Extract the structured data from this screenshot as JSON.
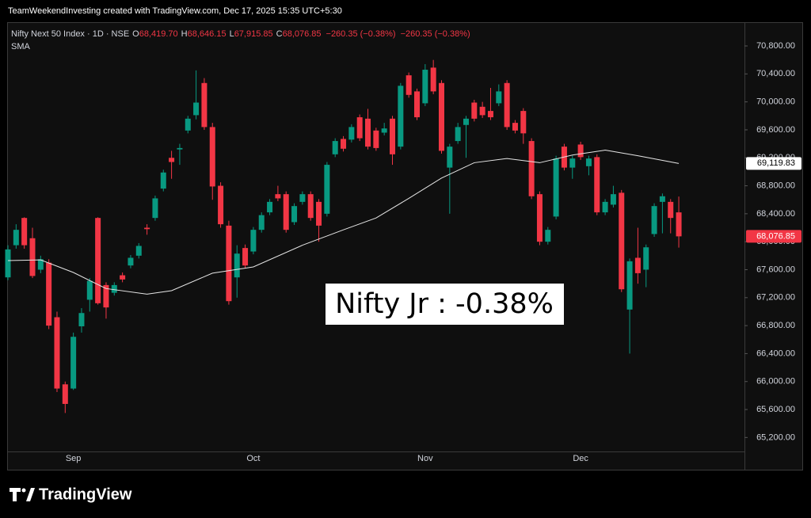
{
  "chart_data": {
    "type": "candlestick",
    "header": "TeamWeekendInvesting created with TradingView.com, Dec 17, 2025 15:35 UTC+5:30",
    "title": "Nifty Next 50 Index · 1D · NSE",
    "ohlc_legend": [
      {
        "key": "O",
        "text": "68,419.70"
      },
      {
        "key": "H",
        "text": "68,646.15"
      },
      {
        "key": "L",
        "text": "67,915.85"
      },
      {
        "key": "C",
        "text": "68,076.85"
      }
    ],
    "change_legend": [
      "−260.35 (−0.38%)",
      "−260.35 (−0.38%)"
    ],
    "annotation": "Nifty Jr : -0.38%",
    "brand": "TradingView",
    "up_color": "#089981",
    "down_color": "#f23645",
    "grid": false,
    "categories": [
      null,
      null,
      null,
      null,
      null,
      null,
      null,
      null,
      "Sep",
      null,
      null,
      null,
      null,
      null,
      null,
      null,
      null,
      null,
      null,
      null,
      null,
      null,
      null,
      null,
      null,
      null,
      null,
      null,
      null,
      null,
      "Oct",
      null,
      null,
      null,
      null,
      null,
      null,
      null,
      null,
      null,
      null,
      null,
      null,
      null,
      null,
      null,
      null,
      null,
      null,
      null,
      null,
      "Nov",
      null,
      null,
      null,
      null,
      null,
      null,
      null,
      null,
      null,
      null,
      null,
      null,
      null,
      null,
      null,
      null,
      null,
      null,
      "Dec",
      null,
      null,
      null,
      null,
      null,
      null,
      null,
      null,
      null,
      null,
      null,
      null
    ],
    "series": [
      {
        "open": [
          67490,
          67950,
          68340,
          68050,
          67600,
          67700,
          66920,
          65960,
          65900,
          66790,
          67170,
          68340,
          67380,
          67270,
          67520,
          67660,
          67800,
          68200,
          68340,
          68760,
          69200,
          69320,
          69590,
          69810,
          70270,
          69640,
          68800,
          68230,
          67490,
          67910,
          67860,
          68170,
          68420,
          68680,
          68680,
          68280,
          68570,
          68680,
          68570,
          68400,
          69250,
          69470,
          69460,
          69780,
          69760,
          69590,
          69560,
          69760,
          69360,
          70380,
          70150,
          69980,
          70490,
          70270,
          69060,
          69440,
          69670,
          69990,
          69930,
          69870,
          69980,
          70270,
          69700,
          69870,
          69440,
          68680,
          68000,
          68360,
          69360,
          69060,
          69390,
          69080,
          69210,
          68420,
          68530,
          68700,
          67030,
          67770,
          67600,
          68110,
          68570,
          68570,
          68419.7
        ],
        "high": [
          67950,
          68250,
          68350,
          68200,
          67800,
          67750,
          67000,
          66000,
          66700,
          67050,
          67480,
          68350,
          67420,
          67420,
          67560,
          67810,
          67980,
          68250,
          68660,
          69030,
          69300,
          69400,
          69800,
          70450,
          70340,
          69700,
          68850,
          68300,
          67950,
          67960,
          68210,
          68420,
          68610,
          68800,
          68720,
          68550,
          68720,
          68720,
          68610,
          69140,
          69480,
          69510,
          69680,
          69820,
          69900,
          69630,
          69700,
          69800,
          70270,
          70420,
          70190,
          70540,
          70600,
          70310,
          69400,
          69700,
          69800,
          70030,
          70000,
          70200,
          70250,
          70310,
          69740,
          69910,
          69480,
          68720,
          68210,
          69230,
          69400,
          69230,
          69430,
          69230,
          69250,
          68610,
          68800,
          68740,
          67760,
          68200,
          67960,
          68550,
          68690,
          68610,
          68646.15
        ],
        "low": [
          67450,
          67900,
          67900,
          67480,
          67550,
          66750,
          65850,
          65550,
          65880,
          66700,
          67000,
          67100,
          66900,
          67230,
          67420,
          67620,
          67760,
          68100,
          68300,
          68720,
          68900,
          69100,
          69550,
          69750,
          69600,
          68600,
          68200,
          67100,
          67200,
          67620,
          67820,
          68130,
          68380,
          68580,
          68130,
          68240,
          68530,
          68300,
          68000,
          68360,
          69210,
          69290,
          69420,
          69440,
          69320,
          69300,
          69520,
          69100,
          69320,
          70060,
          69740,
          69940,
          70110,
          69260,
          68400,
          69400,
          69200,
          69720,
          69770,
          69740,
          69940,
          69600,
          69550,
          69400,
          68610,
          67950,
          67960,
          68320,
          69020,
          68900,
          69170,
          68950,
          68380,
          68380,
          68490,
          67280,
          66400,
          67400,
          67350,
          68070,
          68120,
          68120,
          67915.85
        ],
        "close": [
          67890,
          68170,
          67950,
          67510,
          67750,
          66800,
          65900,
          65680,
          66640,
          66980,
          67440,
          67120,
          67060,
          67380,
          67460,
          67770,
          67940,
          68180,
          68620,
          68990,
          69140,
          69340,
          69760,
          69990,
          69640,
          68790,
          68250,
          67150,
          67830,
          67660,
          68170,
          68380,
          68570,
          68620,
          68170,
          68510,
          68680,
          68340,
          68230,
          69100,
          69440,
          69330,
          69640,
          69480,
          69360,
          69340,
          69620,
          69250,
          70230,
          70100,
          69780,
          70460,
          70150,
          69300,
          69360,
          69640,
          69760,
          69760,
          69810,
          69780,
          70150,
          69640,
          69590,
          69550,
          68650,
          68000,
          68170,
          69190,
          69060,
          69190,
          69210,
          69190,
          68420,
          68570,
          68680,
          67320,
          67720,
          67550,
          67920,
          68510,
          68650,
          68340,
          68076.85
        ]
      }
    ],
    "sma": {
      "name": "SMA",
      "color": "#e6e6e6",
      "x": [
        0,
        4,
        8,
        12,
        17,
        20,
        25,
        30,
        36,
        41,
        45,
        49,
        53,
        57,
        61,
        65,
        69,
        73,
        77,
        82
      ],
      "values": [
        67730,
        67740,
        67560,
        67330,
        67250,
        67300,
        67550,
        67640,
        67950,
        68170,
        68340,
        68620,
        68910,
        69130,
        69190,
        69130,
        69240,
        69310,
        69230,
        69119.83
      ]
    },
    "price_labels": [
      {
        "value": 69119.83,
        "label": "69,119.83",
        "bg": "#ffffff",
        "fg": "#000000"
      },
      {
        "value": 68076.85,
        "label": "68,076.85",
        "bg": "#f23645",
        "fg": "#ffffff"
      }
    ],
    "ylim": [
      65000,
      71140
    ],
    "yticks": [
      {
        "value": 65200,
        "label": "65,200.00"
      },
      {
        "value": 65600,
        "label": "65,600.00"
      },
      {
        "value": 66000,
        "label": "66,000.00"
      },
      {
        "value": 66400,
        "label": "66,400.00"
      },
      {
        "value": 66800,
        "label": "66,800.00"
      },
      {
        "value": 67200,
        "label": "67,200.00"
      },
      {
        "value": 67600,
        "label": "67,600.00"
      },
      {
        "value": 68000,
        "label": "68,000.00"
      },
      {
        "value": 68400,
        "label": "68,400.00"
      },
      {
        "value": 68800,
        "label": "68,800.00"
      },
      {
        "value": 69200,
        "label": "69,200.00"
      },
      {
        "value": 69600,
        "label": "69,600.00"
      },
      {
        "value": 70000,
        "label": "70,000.00"
      },
      {
        "value": 70400,
        "label": "70,400.00"
      },
      {
        "value": 70800,
        "label": "70,800.00"
      }
    ]
  }
}
